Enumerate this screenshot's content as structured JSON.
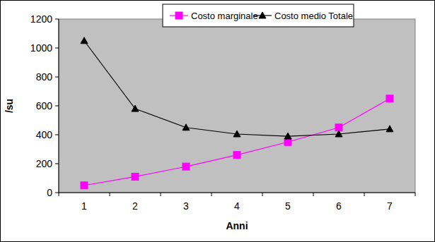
{
  "chart_data": {
    "type": "line",
    "x_label": "Anni",
    "y_label": "/su",
    "categories": [
      "1",
      "2",
      "3",
      "4",
      "5",
      "6",
      "7"
    ],
    "series": [
      {
        "name": "Costo marginale",
        "color": "#ff00ff",
        "marker": "square",
        "values": [
          50,
          110,
          180,
          260,
          350,
          450,
          650
        ]
      },
      {
        "name": "Costo medio Totale",
        "color": "#000000",
        "marker": "triangle",
        "values": [
          1050,
          580,
          450,
          405,
          390,
          405,
          440
        ]
      }
    ],
    "ylim": [
      0,
      1200
    ],
    "yticks": [
      0,
      200,
      400,
      600,
      800,
      1000,
      1200
    ],
    "grid": false,
    "legend": "top"
  }
}
